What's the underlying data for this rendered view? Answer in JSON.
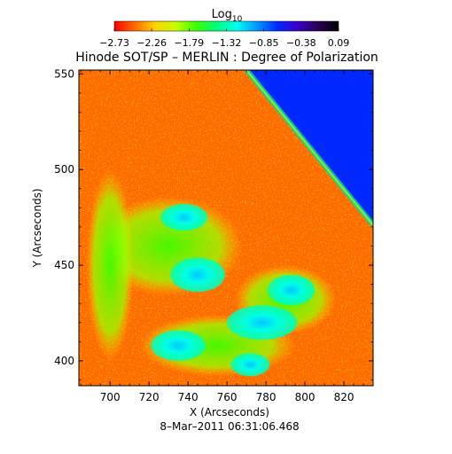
{
  "chart_data": {
    "type": "heatmap",
    "title": "Hinode SOT/SP – MERLIN : Degree of Polarization",
    "xlabel": "X (Arcseconds)",
    "ylabel": "Y (Arcseconds)",
    "footer": "8–Mar–2011 06:31:06.468",
    "xlim": [
      684,
      835
    ],
    "ylim": [
      387,
      552
    ],
    "x_ticks": [
      700,
      720,
      740,
      760,
      780,
      800,
      820
    ],
    "y_ticks": [
      400,
      450,
      500,
      550
    ],
    "x_tick_labels": [
      "700",
      "720",
      "740",
      "760",
      "780",
      "800",
      "820"
    ],
    "y_tick_labels": [
      "400",
      "450",
      "500",
      "550"
    ],
    "colorbar": {
      "label_base": "Log",
      "label_sub": "10",
      "range": [
        -2.73,
        0.09
      ],
      "ticks": [
        -2.73,
        -2.26,
        -1.79,
        -1.32,
        -0.85,
        -0.38,
        0.09
      ],
      "tick_labels": [
        "−2.73",
        "−2.26",
        "−1.79",
        "−1.32",
        "−0.85",
        "−0.38",
        "0.09"
      ],
      "colormap": "rainbow",
      "colors": [
        "#ff0000",
        "#ff6a00",
        "#ffd200",
        "#c8ff00",
        "#3cff00",
        "#00ff78",
        "#00fff0",
        "#0096ff",
        "#0028ff",
        "#3c00c8",
        "#280050",
        "#000000"
      ]
    },
    "limb_line": {
      "x": [
        770,
        835
      ],
      "y": [
        552,
        471
      ]
    },
    "regions": [
      {
        "kind": "background",
        "value": -2.6
      },
      {
        "kind": "off-limb",
        "value": -0.75
      },
      {
        "kind": "plage",
        "x": 738,
        "y": 475,
        "rx": 12,
        "ry": 7,
        "value": -1.25
      },
      {
        "kind": "plage",
        "x": 745,
        "y": 445,
        "rx": 14,
        "ry": 9,
        "value": -1.05
      },
      {
        "kind": "plage",
        "x": 793,
        "y": 437,
        "rx": 12,
        "ry": 8,
        "value": -1.05
      },
      {
        "kind": "plage",
        "x": 778,
        "y": 420,
        "rx": 18,
        "ry": 9,
        "value": -1.2
      },
      {
        "kind": "plage",
        "x": 735,
        "y": 408,
        "rx": 14,
        "ry": 8,
        "value": -1.2
      },
      {
        "kind": "plage",
        "x": 772,
        "y": 398,
        "rx": 10,
        "ry": 6,
        "value": -1.3
      },
      {
        "kind": "network",
        "x": 730,
        "y": 460,
        "rx": 38,
        "ry": 26,
        "value": -1.9
      },
      {
        "kind": "network",
        "x": 790,
        "y": 432,
        "rx": 26,
        "ry": 18,
        "value": -1.95
      },
      {
        "kind": "network",
        "x": 755,
        "y": 408,
        "rx": 40,
        "ry": 16,
        "value": -1.9
      },
      {
        "kind": "network",
        "x": 700,
        "y": 450,
        "rx": 12,
        "ry": 50,
        "value": -2.05
      }
    ]
  }
}
